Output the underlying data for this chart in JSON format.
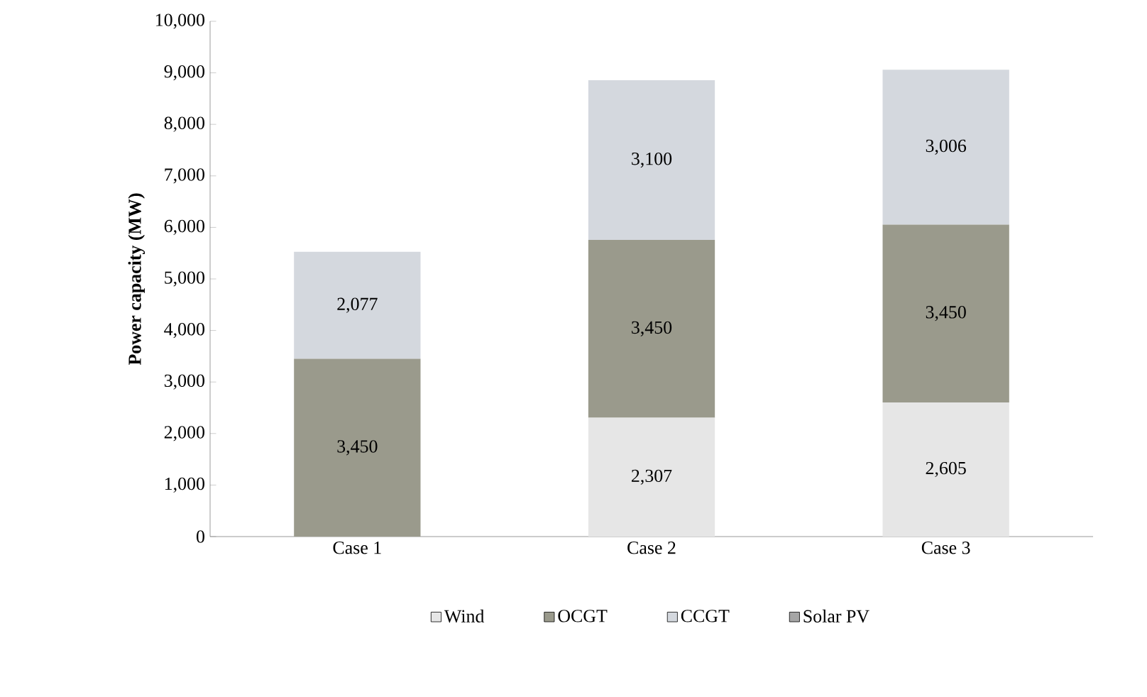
{
  "chart_data": {
    "type": "bar",
    "stacked": true,
    "ylabel": "Power capacity (MW)",
    "categories": [
      "Case 1",
      "Case 2",
      "Case 3"
    ],
    "ylim": [
      0,
      10000
    ],
    "yticks": [
      {
        "value": 0,
        "label": "0"
      },
      {
        "value": 1000,
        "label": "1,000"
      },
      {
        "value": 2000,
        "label": "2,000"
      },
      {
        "value": 3000,
        "label": "3,000"
      },
      {
        "value": 4000,
        "label": "4,000"
      },
      {
        "value": 5000,
        "label": "5,000"
      },
      {
        "value": 6000,
        "label": "6,000"
      },
      {
        "value": 7000,
        "label": "7,000"
      },
      {
        "value": 8000,
        "label": "8,000"
      },
      {
        "value": 9000,
        "label": "9,000"
      },
      {
        "value": 10000,
        "label": "10,000"
      }
    ],
    "series": [
      {
        "name": "Wind",
        "color": "#e6e6e6",
        "values": [
          0,
          2307,
          2605
        ],
        "value_labels": [
          null,
          "2,307",
          "2,605"
        ]
      },
      {
        "name": "OCGT",
        "color": "#9a9a8c",
        "values": [
          3450,
          3450,
          3450
        ],
        "value_labels": [
          "3,450",
          "3,450",
          "3,450"
        ]
      },
      {
        "name": "CCGT",
        "color": "#d4d8de",
        "values": [
          2077,
          3100,
          3006
        ],
        "value_labels": [
          "2,077",
          "3,100",
          "3,006"
        ]
      },
      {
        "name": "Solar PV",
        "color": "#a6a6a6",
        "values": [
          0,
          0,
          0
        ],
        "value_labels": [
          null,
          null,
          null
        ]
      }
    ],
    "legend": "bottom",
    "grid": false
  }
}
